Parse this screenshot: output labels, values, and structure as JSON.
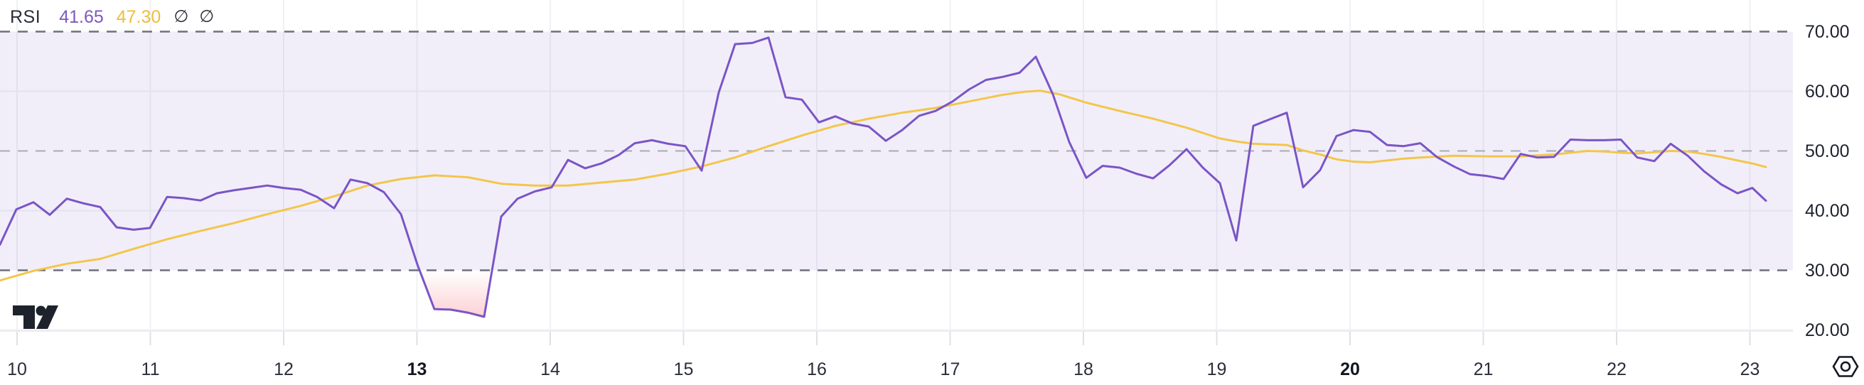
{
  "legend": {
    "indicator": "RSI",
    "rsi_value": "41.65",
    "ma_value": "47.30",
    "null_symbol_1": "∅",
    "null_symbol_2": "∅"
  },
  "colors": {
    "rsi_line": "#7a55c7",
    "rsi_text": "#7e57c2",
    "ma_line": "#f3c64b",
    "ma_text": "#edbe3d",
    "band_fill": "rgba(126,87,194,0.10)",
    "band_edge_line": "#6d717d",
    "middle_line": "#a8abb4",
    "grid_line": "#eff1f4",
    "tick_line": "#dde0e5",
    "pane_border": "#ececf0",
    "oversold_fill": "#f23645",
    "axis_text": "#2a2e39",
    "axis_text_bold": "#131722",
    "logo_color": "#1e222d",
    "icon_color": "#131722"
  },
  "chart_data": {
    "type": "line",
    "title": "RSI",
    "legend_note": "RSI oscillator pane with RSI-based moving average; overbought/oversold band 30-70",
    "y_axis": {
      "labels": [
        "70.00",
        "60.00",
        "50.00",
        "40.00",
        "30.00",
        "20.00"
      ],
      "values": [
        70,
        60,
        50,
        40,
        30,
        20
      ],
      "dashed_levels": [
        70,
        50,
        30
      ],
      "solid_levels": [
        60,
        40,
        20
      ],
      "band": [
        30,
        70
      ],
      "oversold_threshold": 30,
      "ylim_top": 75.4,
      "ylim_bottom": 20
    },
    "x_axis": {
      "labels": [
        {
          "label": "10",
          "bold": false
        },
        {
          "label": "11",
          "bold": false
        },
        {
          "label": "12",
          "bold": false
        },
        {
          "label": "13",
          "bold": true
        },
        {
          "label": "14",
          "bold": false
        },
        {
          "label": "15",
          "bold": false
        },
        {
          "label": "16",
          "bold": false
        },
        {
          "label": "17",
          "bold": false
        },
        {
          "label": "18",
          "bold": false
        },
        {
          "label": "19",
          "bold": false
        },
        {
          "label": "20",
          "bold": true
        },
        {
          "label": "21",
          "bold": false
        },
        {
          "label": "22",
          "bold": false
        },
        {
          "label": "23",
          "bold": false
        }
      ]
    },
    "series": [
      {
        "name": "RSI",
        "current_value": 41.65,
        "points": [
          [
            0,
            34.3
          ],
          [
            23,
            40.2
          ],
          [
            47,
            41.4
          ],
          [
            70,
            39.3
          ],
          [
            94,
            42.0
          ],
          [
            118,
            41.2
          ],
          [
            141,
            40.6
          ],
          [
            164,
            37.2
          ],
          [
            188,
            36.8
          ],
          [
            211,
            37.1
          ],
          [
            235,
            42.3
          ],
          [
            258,
            42.1
          ],
          [
            282,
            41.7
          ],
          [
            305,
            42.9
          ],
          [
            329,
            43.4
          ],
          [
            352,
            43.8
          ],
          [
            376,
            44.2
          ],
          [
            399,
            43.8
          ],
          [
            423,
            43.5
          ],
          [
            446,
            42.3
          ],
          [
            470,
            40.4
          ],
          [
            493,
            45.2
          ],
          [
            517,
            44.6
          ],
          [
            540,
            43.1
          ],
          [
            564,
            39.4
          ],
          [
            587,
            31.0
          ],
          [
            611,
            23.5
          ],
          [
            634,
            23.4
          ],
          [
            658,
            22.9
          ],
          [
            681,
            22.2
          ],
          [
            705,
            39.0
          ],
          [
            728,
            42.0
          ],
          [
            752,
            43.2
          ],
          [
            776,
            43.9
          ],
          [
            799,
            48.5
          ],
          [
            823,
            47.1
          ],
          [
            846,
            47.9
          ],
          [
            870,
            49.3
          ],
          [
            893,
            51.3
          ],
          [
            917,
            51.8
          ],
          [
            940,
            51.2
          ],
          [
            964,
            50.8
          ],
          [
            987,
            46.7
          ],
          [
            1011,
            59.8
          ],
          [
            1034,
            67.9
          ],
          [
            1058,
            68.1
          ],
          [
            1081,
            69.0
          ],
          [
            1105,
            59.0
          ],
          [
            1128,
            58.6
          ],
          [
            1152,
            54.8
          ],
          [
            1175,
            55.8
          ],
          [
            1199,
            54.6
          ],
          [
            1222,
            54.1
          ],
          [
            1246,
            51.7
          ],
          [
            1269,
            53.5
          ],
          [
            1293,
            55.9
          ],
          [
            1316,
            56.7
          ],
          [
            1340,
            58.3
          ],
          [
            1363,
            60.3
          ],
          [
            1387,
            61.9
          ],
          [
            1410,
            62.4
          ],
          [
            1434,
            63.1
          ],
          [
            1457,
            65.8
          ],
          [
            1481,
            59.5
          ],
          [
            1504,
            51.5
          ],
          [
            1528,
            45.5
          ],
          [
            1551,
            47.5
          ],
          [
            1575,
            47.2
          ],
          [
            1598,
            46.2
          ],
          [
            1622,
            45.4
          ],
          [
            1645,
            47.6
          ],
          [
            1669,
            50.3
          ],
          [
            1692,
            47.2
          ],
          [
            1716,
            44.6
          ],
          [
            1739,
            35.0
          ],
          [
            1763,
            54.2
          ],
          [
            1786,
            55.3
          ],
          [
            1810,
            56.4
          ],
          [
            1833,
            43.9
          ],
          [
            1857,
            46.8
          ],
          [
            1880,
            52.5
          ],
          [
            1904,
            53.5
          ],
          [
            1927,
            53.2
          ],
          [
            1951,
            51.0
          ],
          [
            1974,
            50.8
          ],
          [
            1998,
            51.3
          ],
          [
            2021,
            49.0
          ],
          [
            2045,
            47.4
          ],
          [
            2068,
            46.1
          ],
          [
            2092,
            45.8
          ],
          [
            2115,
            45.3
          ],
          [
            2139,
            49.5
          ],
          [
            2162,
            48.9
          ],
          [
            2186,
            49.0
          ],
          [
            2209,
            51.9
          ],
          [
            2233,
            51.8
          ],
          [
            2256,
            51.8
          ],
          [
            2280,
            51.9
          ],
          [
            2303,
            48.9
          ],
          [
            2327,
            48.3
          ],
          [
            2350,
            51.2
          ],
          [
            2374,
            49.2
          ],
          [
            2397,
            46.6
          ],
          [
            2421,
            44.4
          ],
          [
            2444,
            42.9
          ],
          [
            2465,
            43.8
          ],
          [
            2484,
            41.65
          ]
        ]
      },
      {
        "name": "RSI-based MA",
        "current_value": 47.3,
        "points": [
          [
            0,
            28.3
          ],
          [
            47,
            29.9
          ],
          [
            94,
            31.1
          ],
          [
            141,
            31.9
          ],
          [
            188,
            33.6
          ],
          [
            235,
            35.2
          ],
          [
            282,
            36.6
          ],
          [
            329,
            37.9
          ],
          [
            376,
            39.4
          ],
          [
            423,
            40.8
          ],
          [
            470,
            42.4
          ],
          [
            517,
            44.2
          ],
          [
            564,
            45.3
          ],
          [
            611,
            45.9
          ],
          [
            658,
            45.6
          ],
          [
            705,
            44.5
          ],
          [
            752,
            44.2
          ],
          [
            799,
            44.2
          ],
          [
            846,
            44.7
          ],
          [
            893,
            45.2
          ],
          [
            940,
            46.2
          ],
          [
            987,
            47.4
          ],
          [
            1034,
            48.9
          ],
          [
            1081,
            50.8
          ],
          [
            1128,
            52.6
          ],
          [
            1175,
            54.2
          ],
          [
            1222,
            55.4
          ],
          [
            1269,
            56.4
          ],
          [
            1316,
            57.2
          ],
          [
            1363,
            58.3
          ],
          [
            1410,
            59.4
          ],
          [
            1440,
            59.9
          ],
          [
            1463,
            60.1
          ],
          [
            1490,
            59.5
          ],
          [
            1528,
            58.1
          ],
          [
            1575,
            56.7
          ],
          [
            1622,
            55.4
          ],
          [
            1669,
            53.9
          ],
          [
            1716,
            52.1
          ],
          [
            1739,
            51.6
          ],
          [
            1763,
            51.2
          ],
          [
            1786,
            51.1
          ],
          [
            1810,
            51.0
          ],
          [
            1833,
            50.1
          ],
          [
            1857,
            49.4
          ],
          [
            1880,
            48.6
          ],
          [
            1904,
            48.2
          ],
          [
            1927,
            48.1
          ],
          [
            1951,
            48.4
          ],
          [
            1974,
            48.7
          ],
          [
            1998,
            48.9
          ],
          [
            2045,
            49.2
          ],
          [
            2092,
            49.1
          ],
          [
            2139,
            49.1
          ],
          [
            2186,
            49.4
          ],
          [
            2209,
            49.7
          ],
          [
            2233,
            50.0
          ],
          [
            2256,
            49.9
          ],
          [
            2280,
            49.7
          ],
          [
            2303,
            49.6
          ],
          [
            2327,
            49.8
          ],
          [
            2350,
            50.0
          ],
          [
            2374,
            49.9
          ],
          [
            2397,
            49.5
          ],
          [
            2421,
            49.0
          ],
          [
            2444,
            48.4
          ],
          [
            2465,
            47.9
          ],
          [
            2484,
            47.3
          ]
        ]
      }
    ]
  }
}
